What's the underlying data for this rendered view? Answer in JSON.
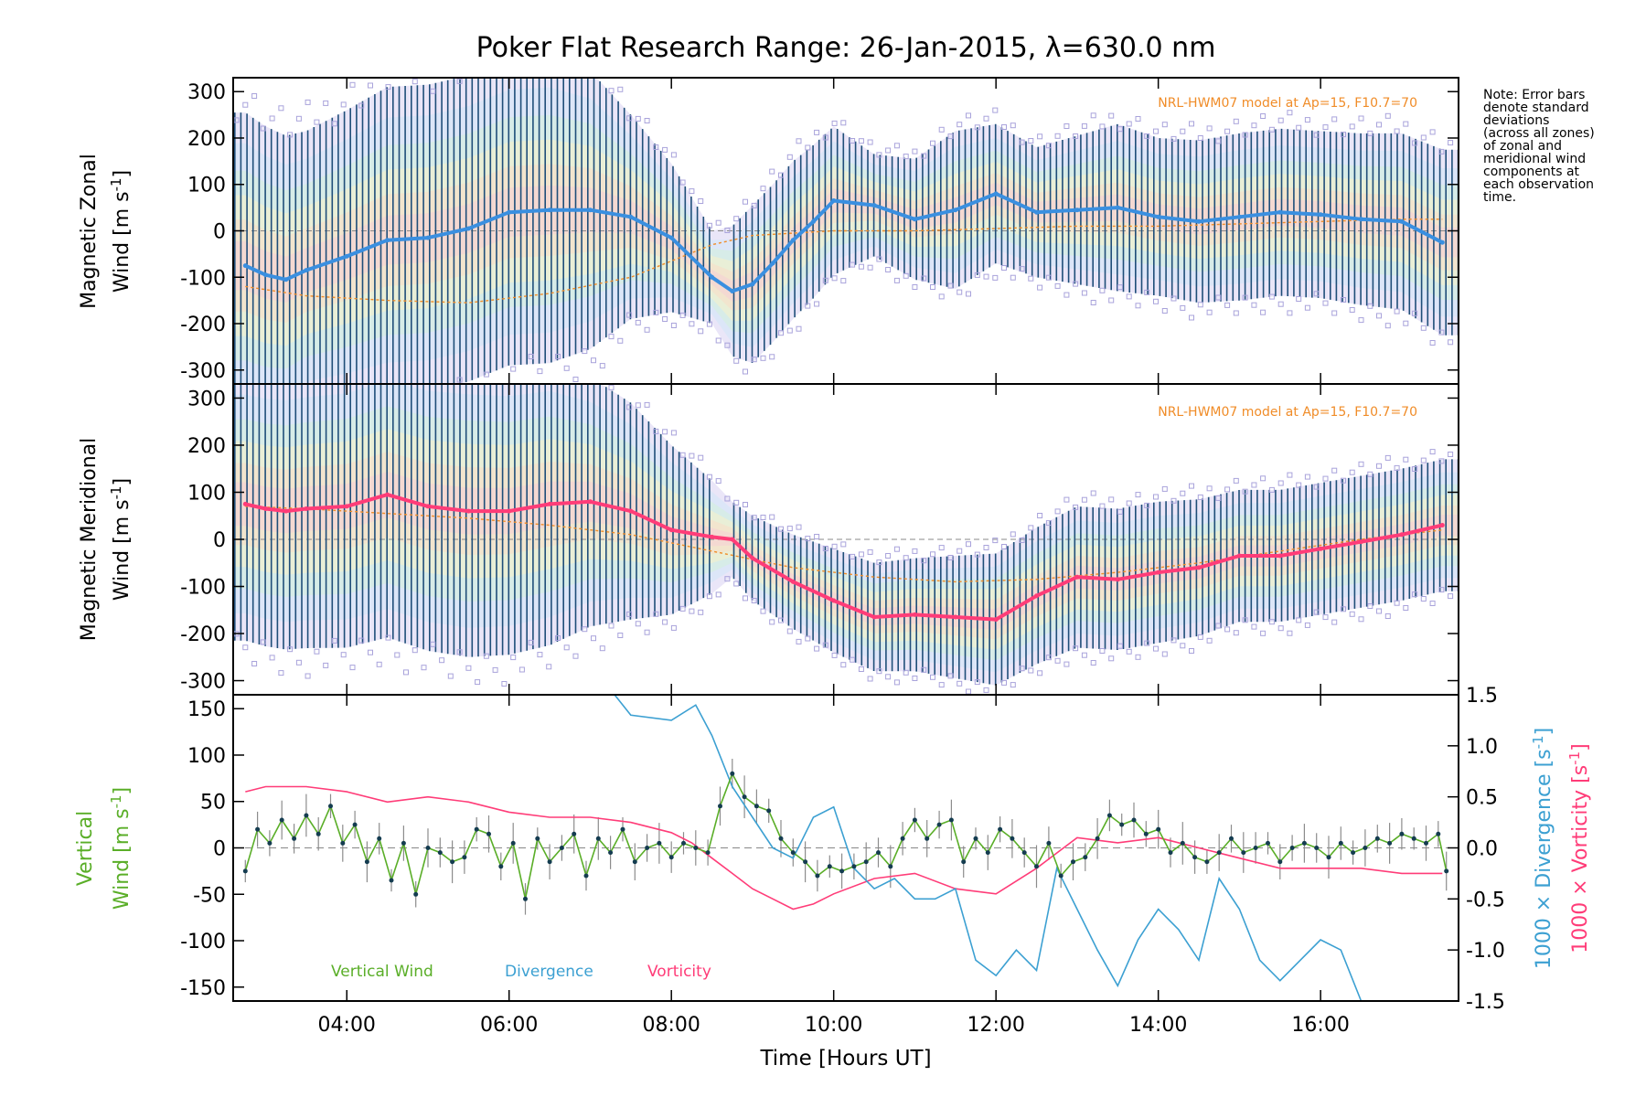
{
  "title": "Poker Flat Research Range: 26-Jan-2015, λ=630.0 nm",
  "note": {
    "lines": [
      "Note: Error bars",
      "denote standard",
      "deviations",
      "(across all zones)",
      "of zonal and",
      "meridional wind",
      "components at",
      "each observation",
      "time."
    ]
  },
  "colors": {
    "zonal_mean": "#3a8fe0",
    "meridional_mean": "#ff3c78",
    "error_bar": "#1f4e79",
    "model": "#f08c28",
    "outlier": "#a9a3db",
    "vertical": "#5aae28",
    "divergence": "#3ca0d2",
    "vorticity": "#ff3c78",
    "zero_line": "#888888"
  },
  "chart_data": [
    {
      "panel": "zonal",
      "type": "line",
      "ylabel": {
        "line1": "Magnetic Zonal",
        "line2": "Wind [m s",
        "sup": "-1",
        "close": "]"
      },
      "ylim": [
        -330,
        330
      ],
      "yticks": [
        "-300",
        "-200",
        "-100",
        "0",
        "100",
        "200",
        "300"
      ],
      "ytick_values": [
        -300,
        -200,
        -100,
        0,
        100,
        200,
        300
      ],
      "model_label": "NRL-HWM07 model at Ap=15, F10.7=70",
      "mean": {
        "x": [
          2.75,
          3.0,
          3.25,
          3.5,
          4.0,
          4.5,
          5.0,
          5.5,
          6.0,
          6.5,
          7.0,
          7.5,
          8.0,
          8.5,
          8.75,
          9.0,
          9.25,
          9.5,
          9.75,
          10.0,
          10.5,
          11.0,
          11.5,
          12.0,
          12.5,
          13.0,
          13.5,
          14.0,
          14.5,
          15.0,
          15.5,
          16.0,
          16.5,
          17.0,
          17.5
        ],
        "y": [
          -75,
          -95,
          -105,
          -85,
          -55,
          -20,
          -15,
          5,
          40,
          45,
          45,
          30,
          -15,
          -100,
          -130,
          -115,
          -70,
          -20,
          20,
          65,
          55,
          25,
          45,
          80,
          40,
          45,
          50,
          30,
          20,
          30,
          40,
          35,
          25,
          20,
          -25
        ]
      },
      "spread": {
        "x": [
          2.75,
          3.5,
          4.5,
          5.5,
          6.5,
          7.0,
          7.5,
          8.0,
          8.5,
          8.75,
          9.0,
          9.5,
          10.0,
          10.5,
          11.0,
          11.5,
          12.0,
          12.5,
          13.0,
          13.5,
          14.0,
          15.0,
          16.0,
          17.0,
          17.5
        ],
        "sd": [
          330,
          300,
          330,
          330,
          330,
          300,
          220,
          160,
          100,
          140,
          170,
          170,
          160,
          110,
          130,
          170,
          150,
          140,
          160,
          180,
          170,
          180,
          180,
          190,
          200
        ]
      },
      "model": {
        "x": [
          2.75,
          3.5,
          4.5,
          5.5,
          6.5,
          7.5,
          8.0,
          8.5,
          9.0,
          10.0,
          11.0,
          12.0,
          13.0,
          14.0,
          15.0,
          16.0,
          17.0,
          17.5
        ],
        "y": [
          -120,
          -140,
          -150,
          -155,
          -135,
          -100,
          -65,
          -30,
          -10,
          0,
          0,
          5,
          10,
          10,
          15,
          20,
          25,
          25
        ]
      }
    },
    {
      "panel": "meridional",
      "type": "line",
      "ylabel": {
        "line1": "Magnetic Meridional",
        "line2": "Wind [m s",
        "sup": "-1",
        "close": "]"
      },
      "ylim": [
        -330,
        330
      ],
      "yticks": [
        "-300",
        "-200",
        "-100",
        "0",
        "100",
        "200",
        "300"
      ],
      "ytick_values": [
        -300,
        -200,
        -100,
        0,
        100,
        200,
        300
      ],
      "model_label": "NRL-HWM07 model at Ap=15, F10.7=70",
      "mean": {
        "x": [
          2.75,
          3.0,
          3.25,
          3.5,
          4.0,
          4.5,
          5.0,
          5.5,
          6.0,
          6.5,
          7.0,
          7.5,
          8.0,
          8.5,
          8.75,
          9.0,
          9.5,
          10.0,
          10.5,
          11.0,
          11.5,
          12.0,
          12.5,
          13.0,
          13.5,
          14.0,
          14.5,
          15.0,
          15.5,
          16.0,
          16.5,
          17.0,
          17.5
        ],
        "y": [
          75,
          65,
          60,
          65,
          70,
          95,
          70,
          60,
          60,
          75,
          80,
          60,
          20,
          5,
          0,
          -40,
          -90,
          -130,
          -165,
          -160,
          -165,
          -170,
          -120,
          -80,
          -85,
          -70,
          -60,
          -35,
          -35,
          -20,
          -5,
          10,
          30
        ]
      },
      "spread": {
        "x": [
          2.75,
          4.0,
          5.5,
          6.5,
          7.5,
          8.0,
          8.5,
          8.75,
          9.0,
          10.0,
          11.0,
          12.0,
          13.0,
          14.0,
          15.0,
          16.0,
          17.0,
          17.5
        ],
        "sd": [
          290,
          300,
          310,
          300,
          230,
          180,
          120,
          80,
          90,
          110,
          120,
          140,
          150,
          150,
          140,
          140,
          140,
          140
        ]
      },
      "model": {
        "x": [
          2.75,
          3.5,
          4.5,
          5.5,
          6.5,
          7.5,
          8.5,
          9.5,
          10.5,
          11.5,
          12.5,
          13.5,
          14.5,
          15.5,
          16.5,
          17.5
        ],
        "y": [
          70,
          65,
          55,
          45,
          30,
          10,
          -25,
          -60,
          -80,
          -90,
          -85,
          -70,
          -50,
          -25,
          0,
          20
        ]
      }
    },
    {
      "panel": "vertical",
      "type": "line",
      "ylabel_left": {
        "line1": "Vertical",
        "line2": "Wind [m s",
        "sup": "-1",
        "close": "]"
      },
      "ylabel_right1": {
        "text": "1000 × Divergence [s",
        "sup": "-1",
        "close": "]"
      },
      "ylabel_right2": {
        "text": "1000 × Vorticity [s",
        "sup": "-1",
        "close": "]"
      },
      "ylim": [
        -165,
        165
      ],
      "yticks": [
        "-150",
        "-100",
        "-50",
        "0",
        "50",
        "100",
        "150"
      ],
      "ytick_values": [
        -150,
        -100,
        -50,
        0,
        50,
        100,
        150
      ],
      "y2lim": [
        -1.5,
        1.5
      ],
      "y2ticks": [
        "-1.5",
        "-1.0",
        "-0.5",
        "0.0",
        "0.5",
        "1.0",
        "1.5"
      ],
      "y2tick_values": [
        -1.5,
        -1.0,
        -0.5,
        0.0,
        0.5,
        1.0,
        1.5
      ],
      "legend": [
        "Vertical Wind",
        "Divergence",
        "Vorticity"
      ],
      "series": [
        {
          "name": "Vertical Wind",
          "x": [
            2.75,
            2.9,
            3.05,
            3.2,
            3.35,
            3.5,
            3.65,
            3.8,
            3.95,
            4.1,
            4.25,
            4.4,
            4.55,
            4.7,
            4.85,
            5.0,
            5.15,
            5.3,
            5.45,
            5.6,
            5.75,
            5.9,
            6.05,
            6.2,
            6.35,
            6.5,
            6.65,
            6.8,
            6.95,
            7.1,
            7.25,
            7.4,
            7.55,
            7.7,
            7.85,
            8.0,
            8.15,
            8.3,
            8.45,
            8.6,
            8.75,
            8.9,
            9.05,
            9.2,
            9.35,
            9.5,
            9.65,
            9.8,
            9.95,
            10.1,
            10.25,
            10.4,
            10.55,
            10.7,
            10.85,
            11.0,
            11.15,
            11.3,
            11.45,
            11.6,
            11.75,
            11.9,
            12.05,
            12.2,
            12.35,
            12.5,
            12.65,
            12.8,
            12.95,
            13.1,
            13.25,
            13.4,
            13.55,
            13.7,
            13.85,
            14.0,
            14.15,
            14.3,
            14.45,
            14.6,
            14.75,
            14.9,
            15.05,
            15.2,
            15.35,
            15.5,
            15.65,
            15.8,
            15.95,
            16.1,
            16.25,
            16.4,
            16.55,
            16.7,
            16.85,
            17.0,
            17.15,
            17.3,
            17.45,
            17.55
          ],
          "y": [
            -25,
            20,
            5,
            30,
            10,
            35,
            15,
            45,
            5,
            25,
            -15,
            10,
            -35,
            5,
            -50,
            0,
            -5,
            -15,
            -10,
            20,
            15,
            -20,
            5,
            -55,
            10,
            -15,
            0,
            15,
            -30,
            10,
            -5,
            20,
            -15,
            0,
            5,
            -10,
            5,
            0,
            -5,
            45,
            80,
            55,
            45,
            40,
            10,
            -5,
            -15,
            -30,
            -20,
            -25,
            -20,
            -15,
            -5,
            -20,
            10,
            30,
            10,
            25,
            30,
            -15,
            10,
            -5,
            20,
            10,
            -5,
            -20,
            5,
            -30,
            -15,
            -10,
            10,
            35,
            25,
            30,
            15,
            20,
            -5,
            5,
            -10,
            -15,
            -5,
            10,
            -5,
            0,
            5,
            -15,
            0,
            5,
            0,
            -10,
            5,
            -5,
            0,
            10,
            5,
            15,
            10,
            5,
            15,
            -25
          ]
        },
        {
          "name": "Divergence",
          "x": [
            7.3,
            7.5,
            8.0,
            8.3,
            8.5,
            8.75,
            9.0,
            9.25,
            9.5,
            9.75,
            10.0,
            10.25,
            10.5,
            10.75,
            11.0,
            11.25,
            11.5,
            11.75,
            12.0,
            12.25,
            12.5,
            12.75,
            13.0,
            13.25,
            13.5,
            13.75,
            14.0,
            14.25,
            14.5,
            14.75,
            15.0,
            15.25,
            15.5,
            15.75,
            16.0,
            16.25,
            16.5
          ],
          "y": [
            1.5,
            1.3,
            1.25,
            1.4,
            1.1,
            0.6,
            0.3,
            0.0,
            -0.1,
            0.3,
            0.4,
            -0.2,
            -0.4,
            -0.3,
            -0.5,
            -0.5,
            -0.4,
            -1.1,
            -1.25,
            -1.0,
            -1.2,
            -0.2,
            -0.6,
            -1.0,
            -1.35,
            -0.9,
            -0.6,
            -0.8,
            -1.1,
            -0.3,
            -0.6,
            -1.1,
            -1.3,
            -1.1,
            -0.9,
            -1.0,
            -1.5
          ]
        },
        {
          "name": "Vorticity",
          "x": [
            2.75,
            3.0,
            3.5,
            4.0,
            4.5,
            5.0,
            5.5,
            6.0,
            6.5,
            7.0,
            7.5,
            8.0,
            8.25,
            8.5,
            8.75,
            9.0,
            9.25,
            9.5,
            9.75,
            10.0,
            10.5,
            11.0,
            11.5,
            12.0,
            12.5,
            13.0,
            13.5,
            14.0,
            14.5,
            15.0,
            15.5,
            16.0,
            16.5,
            17.0,
            17.5
          ],
          "y": [
            0.55,
            0.6,
            0.6,
            0.55,
            0.45,
            0.5,
            0.45,
            0.35,
            0.3,
            0.3,
            0.25,
            0.15,
            0.05,
            -0.1,
            -0.25,
            -0.4,
            -0.5,
            -0.6,
            -0.55,
            -0.45,
            -0.3,
            -0.25,
            -0.4,
            -0.45,
            -0.2,
            0.1,
            0.05,
            0.1,
            0.0,
            -0.1,
            -0.2,
            -0.2,
            -0.2,
            -0.25,
            -0.25
          ]
        }
      ]
    }
  ],
  "xaxis": {
    "label": "Time [Hours UT]",
    "xlim": [
      2.6,
      17.7
    ],
    "ticks": [
      "04:00",
      "06:00",
      "08:00",
      "10:00",
      "12:00",
      "14:00",
      "16:00"
    ],
    "tick_values": [
      4,
      6,
      8,
      10,
      12,
      14,
      16
    ]
  }
}
